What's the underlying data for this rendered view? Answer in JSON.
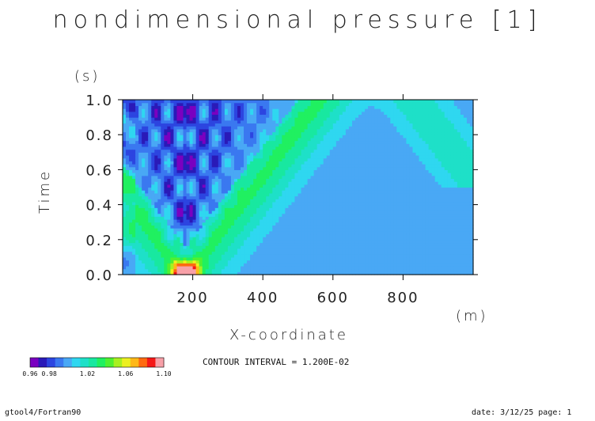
{
  "title": "nondimensional pressure [1]",
  "chart_data": {
    "type": "heatmap",
    "title": "nondimensional pressure [1]",
    "xlabel": "X-coordinate",
    "xunit": "(m)",
    "ylabel": "Time",
    "yunit": "(s)",
    "xlim": [
      0,
      1000
    ],
    "ylim": [
      0.0,
      1.0
    ],
    "x_ticks": [
      200,
      400,
      600,
      800
    ],
    "y_ticks": [
      0.0,
      0.2,
      0.4,
      0.6,
      0.8,
      1.0
    ],
    "y_tick_labels": [
      "0.0",
      "0.2",
      "0.4",
      "0.6",
      "0.8",
      "1.0"
    ],
    "contour_interval": "CONTOUR INTERVAL = 1.200E-02",
    "colorbar": {
      "tick_labels": [
        "0.96",
        "0.98",
        "1.02",
        "1.06",
        "1.10"
      ],
      "tick_values": [
        0.96,
        0.98,
        1.02,
        1.06,
        1.1
      ],
      "colors": [
        "#7a00c0",
        "#2a1ab8",
        "#2c45e0",
        "#3a78f0",
        "#49a8f5",
        "#2fd7f0",
        "#1ee0c8",
        "#18e8a0",
        "#20f060",
        "#50f030",
        "#a8f020",
        "#ecf020",
        "#ffb818",
        "#ff6a10",
        "#f51818",
        "#f8a0a8"
      ],
      "range": [
        0.96,
        1.1
      ]
    },
    "background_value": 1.0,
    "features": [
      {
        "kind": "source-peak",
        "x": 180,
        "t": 0.05,
        "value": 1.1
      },
      {
        "kind": "left-wavefront",
        "x0": 180,
        "t0": 0.0,
        "x1": 0,
        "t1": 0.6
      },
      {
        "kind": "right-wavefront",
        "x0": 180,
        "t0": 0.0,
        "x1": 560,
        "t1": 1.0
      },
      {
        "kind": "reflected-wavefront",
        "x0": 1000,
        "t0": 0.55,
        "x1": 860,
        "t1": 1.0
      }
    ]
  },
  "footer": {
    "left": "gtool4/Fortran90",
    "right": "date: 3/12/25 page: 1"
  }
}
